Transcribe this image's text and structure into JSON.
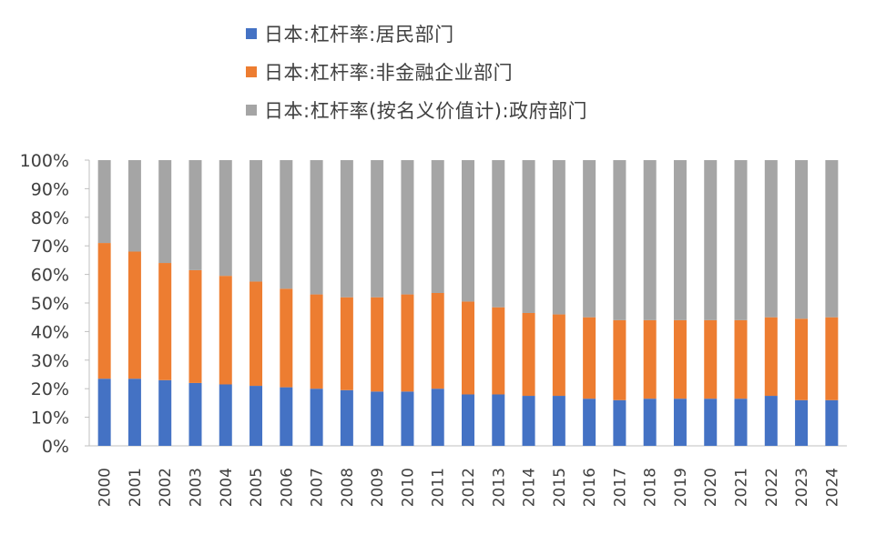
{
  "chart_data": {
    "type": "bar",
    "stacked": true,
    "title": "",
    "xlabel": "",
    "ylabel": "",
    "ylim": [
      0,
      100
    ],
    "yticks": [
      "0%",
      "10%",
      "20%",
      "30%",
      "40%",
      "50%",
      "60%",
      "70%",
      "80%",
      "90%",
      "100%"
    ],
    "legend_position": "top",
    "categories": [
      "2000",
      "2001",
      "2002",
      "2003",
      "2004",
      "2005",
      "2006",
      "2007",
      "2008",
      "2009",
      "2010",
      "2011",
      "2012",
      "2013",
      "2014",
      "2015",
      "2016",
      "2017",
      "2018",
      "2019",
      "2020",
      "2021",
      "2022",
      "2023",
      "2024"
    ],
    "series": [
      {
        "name": "日本:杠杆率:居民部门",
        "color": "#4472c4",
        "values": [
          23.5,
          23.5,
          23,
          22,
          21.5,
          21,
          20.5,
          20,
          19.5,
          19,
          19,
          20,
          18,
          18,
          17.5,
          17.5,
          16.5,
          16,
          16.5,
          16.5,
          16.5,
          16.5,
          17.5,
          16,
          16
        ]
      },
      {
        "name": "日本:杠杆率:非金融企业部门",
        "color": "#ed7d31",
        "values": [
          47.5,
          44.5,
          41,
          39.5,
          38,
          36.5,
          34.5,
          33,
          32.5,
          33,
          34,
          33.5,
          32.5,
          30.5,
          29,
          28.5,
          28.5,
          28,
          27.5,
          27.5,
          27.5,
          27.5,
          27.5,
          28.5,
          29
        ]
      },
      {
        "name": "日本:杠杆率(按名义价值计):政府部门",
        "color": "#a5a5a5",
        "values": [
          29,
          32,
          36,
          38.5,
          40.5,
          42.5,
          45,
          47,
          48,
          48,
          47,
          46.5,
          49.5,
          51.5,
          53.5,
          54,
          55,
          56,
          56,
          56,
          56,
          56,
          55,
          55.5,
          55
        ]
      }
    ]
  }
}
